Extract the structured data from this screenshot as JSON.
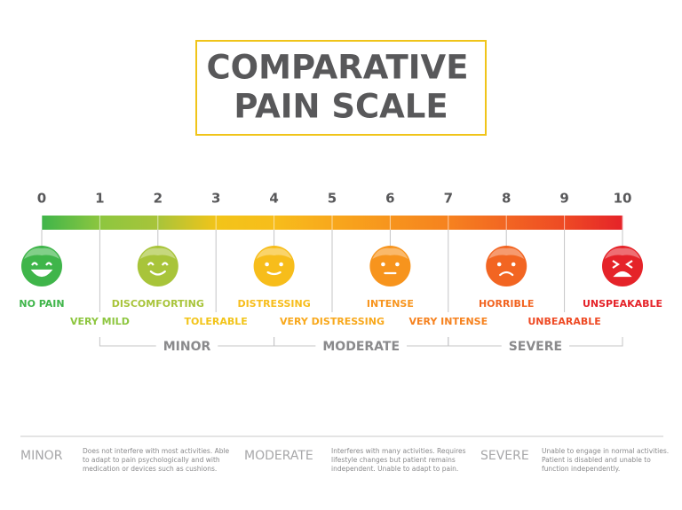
{
  "title": {
    "lines": [
      "COMPARATIVE",
      "PAIN SCALE"
    ]
  },
  "scale": {
    "ticks": [
      0,
      1,
      2,
      3,
      4,
      5,
      6,
      7,
      8,
      9,
      10
    ]
  },
  "levels": [
    {
      "label": "NO PAIN"
    },
    {
      "label": "VERY MILD"
    },
    {
      "label": "DISCOMFORTING"
    },
    {
      "label": "TOLERABLE"
    },
    {
      "label": "DISTRESSING"
    },
    {
      "label": "VERY DISTRESSING"
    },
    {
      "label": "INTENSE"
    },
    {
      "label": "VERY INTENSE"
    },
    {
      "label": "HORRIBLE"
    },
    {
      "label": "UNBEARABLE"
    },
    {
      "label": "UNSPEAKABLE"
    }
  ],
  "groups": [
    {
      "name": "MINOR"
    },
    {
      "name": "MODERATE"
    },
    {
      "name": "SEVERE"
    }
  ],
  "legend": [
    {
      "term": "MINOR",
      "description": [
        "Does not interfere with most activities. Able",
        "to adapt to pain psychologically and with",
        "medication or  devices such as cushions."
      ]
    },
    {
      "term": "MODERATE",
      "description": [
        "Interferes with many activities. Requires",
        "lifestyle changes but patient remains",
        "independent. Unable to adapt to pain."
      ]
    },
    {
      "term": "SEVERE",
      "description": [
        "Unable to engage in normal activities.",
        "Patient is disabled and unable to",
        "function  independently."
      ]
    }
  ]
}
